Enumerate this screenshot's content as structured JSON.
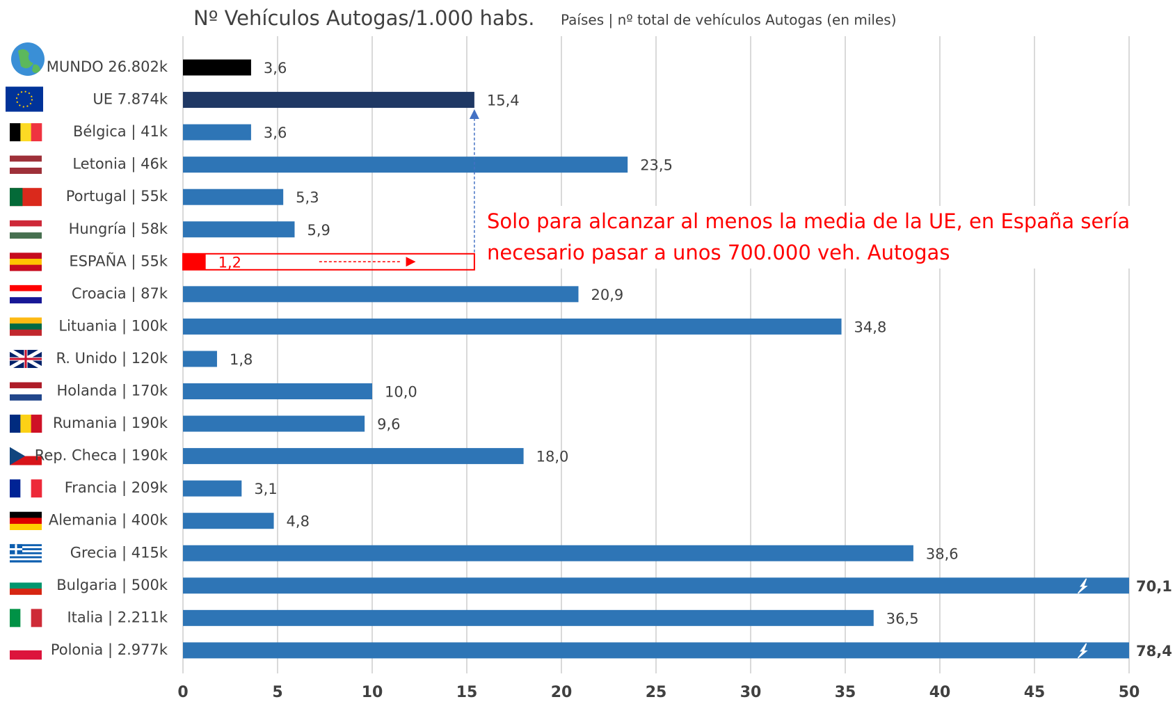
{
  "chart_data": {
    "type": "barh",
    "title": "Nº Vehículos Autogas/1.000 habs.",
    "subtitle": "Países | nº total de vehículos Autogas (en miles)",
    "annotation": "Solo para alcanzar al menos la media de la UE, en España sería necesario pasar a unos 700.000 veh. Autogas",
    "categories": [
      "MUNDO 26.802k",
      "UE 7.874k",
      "Bélgica | 41k",
      "Letonia | 46k",
      "Portugal | 55k",
      "Hungría | 58k",
      "ESPAÑA | 55k",
      "Croacia | 87k",
      "Lituania | 100k",
      "R. Unido | 120k",
      "Holanda | 170k",
      "Rumania | 190k",
      "Rep. Checa | 190k",
      "Francia | 209k",
      "Alemania | 400k",
      "Grecia | 415k",
      "Bulgaria | 500k",
      "Italia | 2.211k",
      "Polonia | 2.977k"
    ],
    "values": [
      3.6,
      15.4,
      3.6,
      23.5,
      5.3,
      5.9,
      1.2,
      20.9,
      34.8,
      1.8,
      10.0,
      9.6,
      18.0,
      3.1,
      4.8,
      38.6,
      70.1,
      36.5,
      78.4
    ],
    "value_labels": [
      "3,6",
      "15,4",
      "3,6",
      "23,5",
      "5,3",
      "5,9",
      "1,2",
      "20,9",
      "34,8",
      "1,8",
      "10,0",
      "9,6",
      "18,0",
      "3,1",
      "4,8",
      "38,6",
      "70,1",
      "36,5",
      "78,4"
    ],
    "colors": [
      "#000000",
      "#1f3864",
      "#2e75b6",
      "#2e75b6",
      "#2e75b6",
      "#2e75b6",
      "#ff0000",
      "#2e75b6",
      "#2e75b6",
      "#2e75b6",
      "#2e75b6",
      "#2e75b6",
      "#2e75b6",
      "#2e75b6",
      "#2e75b6",
      "#2e75b6",
      "#2e75b6",
      "#2e75b6",
      "#2e75b6"
    ],
    "xlim": [
      0,
      50
    ],
    "xticks": [
      0,
      5,
      10,
      15,
      20,
      25,
      30,
      35,
      40,
      45,
      50
    ],
    "grid": true
  }
}
